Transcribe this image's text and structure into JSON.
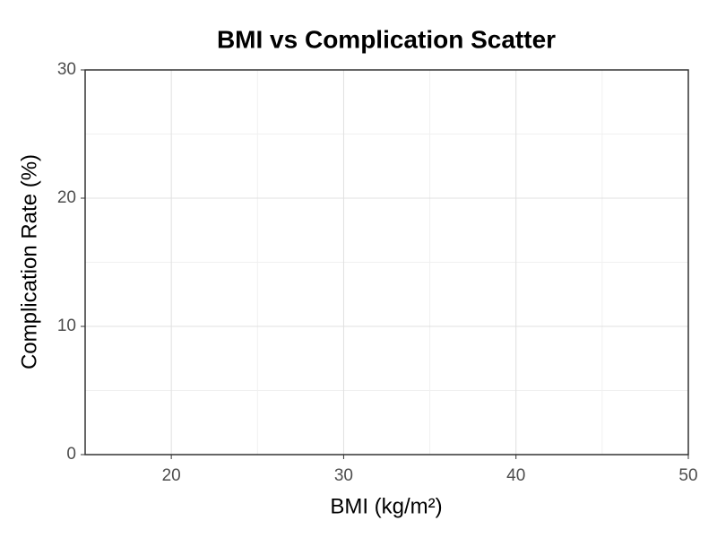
{
  "chart_data": {
    "type": "scatter",
    "title": "BMI vs Complication Scatter",
    "x_label": "BMI (kg/m²)",
    "y_label": "Complication Rate (%)",
    "x": [],
    "y": [],
    "color": "#1f77b4",
    "xlim": [
      15,
      50
    ],
    "ylim": [
      0,
      30
    ],
    "xticks": [
      20,
      30,
      40,
      50
    ],
    "yticks": [
      0,
      10,
      20,
      30
    ],
    "grid": true
  }
}
